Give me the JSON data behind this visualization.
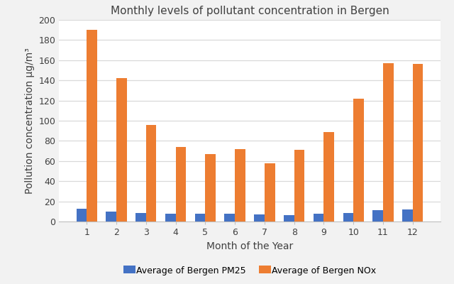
{
  "title": "Monthly levels of pollutant concentration in Bergen",
  "xlabel": "Month of the Year",
  "ylabel": "Pollution concentration μg/m³",
  "months": [
    1,
    2,
    3,
    4,
    5,
    6,
    7,
    8,
    9,
    10,
    11,
    12
  ],
  "pm25": [
    13,
    10,
    8.5,
    8,
    7.5,
    8,
    7,
    6.5,
    8,
    8.5,
    11,
    12
  ],
  "nox": [
    190,
    142,
    96,
    74,
    67,
    72,
    58,
    71,
    89,
    122,
    157,
    156
  ],
  "pm25_color": "#4472C4",
  "nox_color": "#ED7D31",
  "ylim": [
    0,
    200
  ],
  "yticks": [
    0,
    20,
    40,
    60,
    80,
    100,
    120,
    140,
    160,
    180,
    200
  ],
  "legend_pm25": "Average of Bergen PM25",
  "legend_nox": "Average of Bergen NOx",
  "bar_width": 0.35,
  "title_fontsize": 11,
  "label_fontsize": 10,
  "tick_fontsize": 9,
  "legend_fontsize": 9,
  "bg_color": "#FFFFFF",
  "fig_bg_color": "#F2F2F2",
  "grid_color": "#D9D9D9"
}
